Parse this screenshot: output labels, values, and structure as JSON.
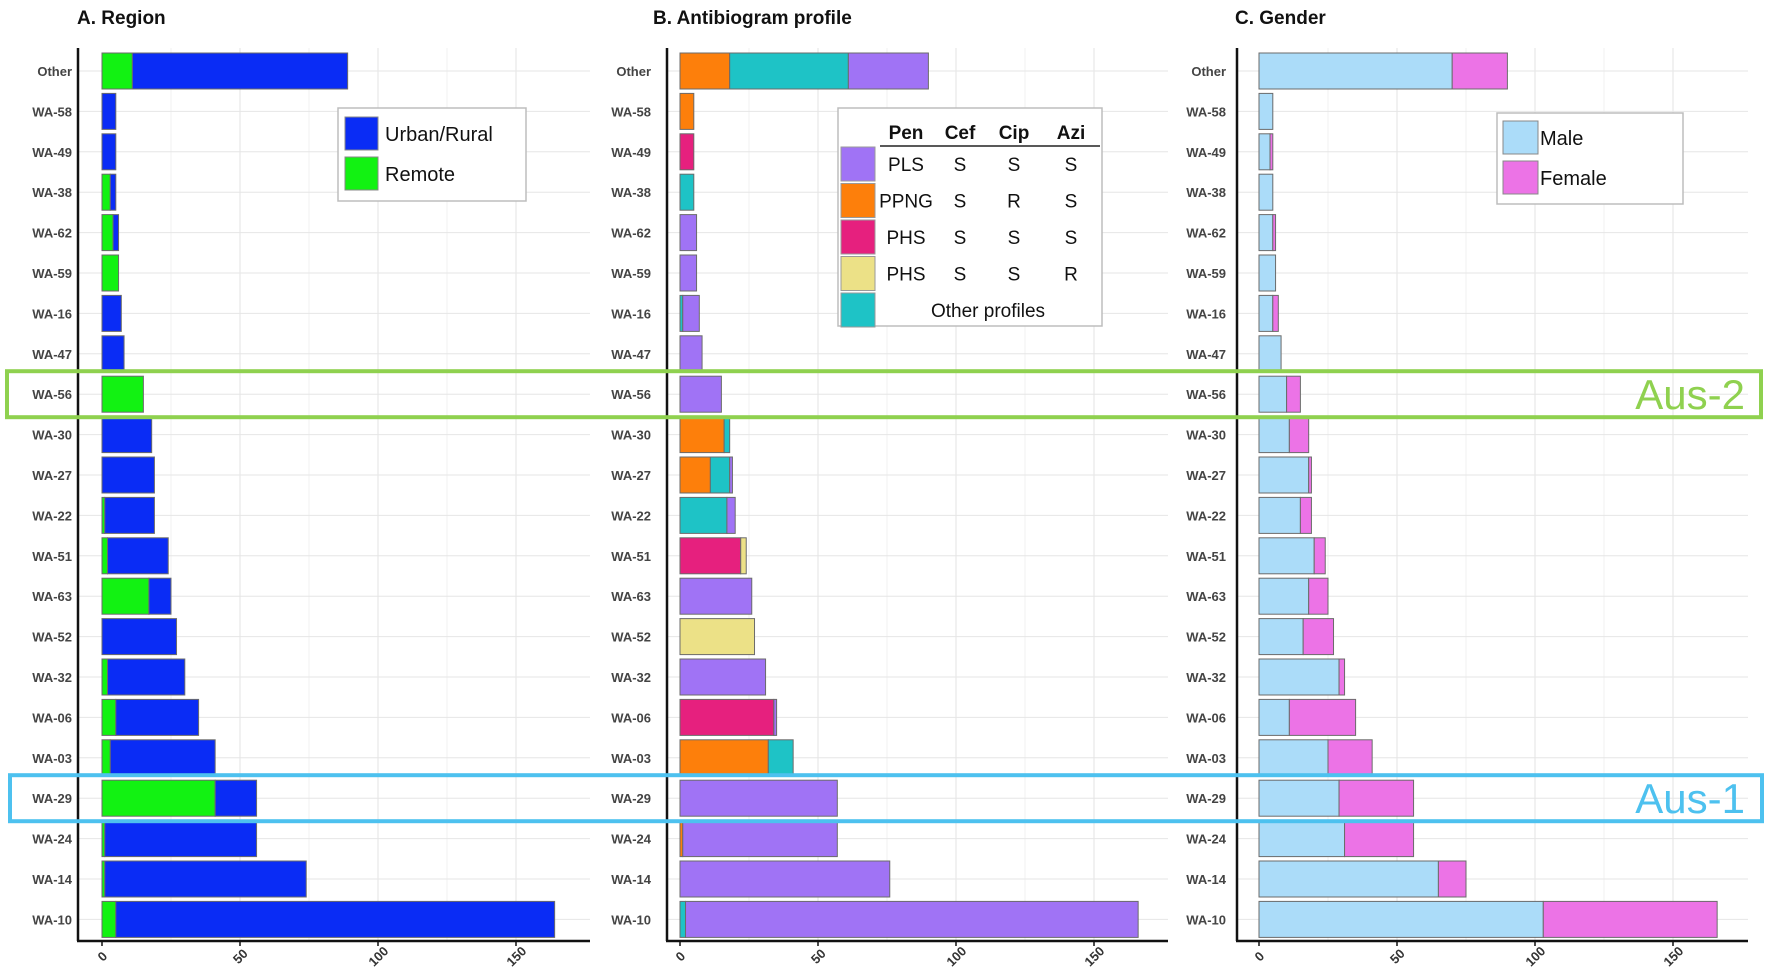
{
  "chart_data": [
    {
      "type": "bar",
      "orientation": "horizontal",
      "stacked": true,
      "title": "A. Region",
      "categories": [
        "Other",
        "WA-58",
        "WA-49",
        "WA-38",
        "WA-62",
        "WA-59",
        "WA-16",
        "WA-47",
        "WA-56",
        "WA-30",
        "WA-27",
        "WA-22",
        "WA-51",
        "WA-63",
        "WA-52",
        "WA-32",
        "WA-06",
        "WA-03",
        "WA-29",
        "WA-24",
        "WA-14",
        "WA-10"
      ],
      "series": [
        {
          "name": "Remote",
          "color": "#12f212",
          "values": [
            11,
            0,
            0,
            3,
            4,
            6,
            0,
            0,
            15,
            0,
            0,
            1,
            2,
            17,
            0,
            2,
            5,
            3,
            41,
            1,
            1,
            5
          ]
        },
        {
          "name": "Urban/Rural",
          "color": "#0a2cf5",
          "values": [
            78,
            5,
            5,
            2,
            2,
            0,
            7,
            8,
            0,
            18,
            19,
            18,
            22,
            8,
            27,
            28,
            30,
            38,
            15,
            55,
            73,
            159
          ]
        }
      ],
      "xlim": [
        0,
        170
      ],
      "xticks": [
        0,
        50,
        100,
        150
      ],
      "legend_position": "top-right",
      "grid": true
    },
    {
      "type": "bar",
      "orientation": "horizontal",
      "stacked": true,
      "title": "B. Antibiogram profile",
      "categories": [
        "Other",
        "WA-58",
        "WA-49",
        "WA-38",
        "WA-62",
        "WA-59",
        "WA-16",
        "WA-47",
        "WA-56",
        "WA-30",
        "WA-27",
        "WA-22",
        "WA-51",
        "WA-63",
        "WA-52",
        "WA-32",
        "WA-06",
        "WA-03",
        "WA-29",
        "WA-24",
        "WA-14",
        "WA-10"
      ],
      "series": [
        {
          "key": "ppng",
          "color": "#fd7f0b",
          "values": [
            18,
            5,
            0,
            0,
            0,
            0,
            0,
            0,
            0,
            16,
            11,
            0,
            0,
            0,
            0,
            0,
            0,
            32,
            0,
            1,
            0,
            0
          ]
        },
        {
          "key": "other",
          "color": "#1ec3c6",
          "values": [
            43,
            0,
            0,
            5,
            0,
            0,
            1,
            0,
            0,
            2,
            7,
            17,
            0,
            0,
            0,
            0,
            0,
            9,
            0,
            0,
            0,
            2
          ]
        },
        {
          "key": "phs_sss",
          "color": "#e6207e",
          "values": [
            0,
            0,
            5,
            0,
            0,
            0,
            0,
            0,
            0,
            0,
            0,
            0,
            22,
            0,
            0,
            0,
            34,
            0,
            0,
            0,
            0,
            0
          ]
        },
        {
          "key": "phs_ssr",
          "color": "#ece187",
          "values": [
            0,
            0,
            0,
            0,
            0,
            0,
            0,
            0,
            0,
            0,
            0,
            0,
            2,
            0,
            27,
            0,
            0,
            0,
            0,
            0,
            0,
            0
          ]
        },
        {
          "key": "pls",
          "color": "#a073f5",
          "values": [
            29,
            0,
            0,
            0,
            6,
            6,
            6,
            8,
            15,
            0,
            1,
            3,
            0,
            26,
            0,
            31,
            1,
            0,
            57,
            56,
            76,
            164
          ]
        }
      ],
      "xlim": [
        0,
        170
      ],
      "xticks": [
        0,
        50,
        100,
        150
      ],
      "legend_position": "top-right",
      "legend_table": {
        "headers": [
          "Pen",
          "Cef",
          "Cip",
          "Azi"
        ],
        "rows": [
          {
            "key": "pls",
            "color": "#a073f5",
            "cells": [
              "PLS",
              "S",
              "S",
              "S"
            ]
          },
          {
            "key": "ppng",
            "color": "#fd7f0b",
            "cells": [
              "PPNG",
              "S",
              "R",
              "S"
            ]
          },
          {
            "key": "phs_sss",
            "color": "#e6207e",
            "cells": [
              "PHS",
              "S",
              "S",
              "S"
            ]
          },
          {
            "key": "phs_ssr",
            "color": "#ece187",
            "cells": [
              "PHS",
              "S",
              "S",
              "R"
            ]
          },
          {
            "key": "other",
            "color": "#1ec3c6",
            "label": "Other profiles"
          }
        ]
      },
      "grid": true
    },
    {
      "type": "bar",
      "orientation": "horizontal",
      "stacked": true,
      "title": "C. Gender",
      "categories": [
        "Other",
        "WA-58",
        "WA-49",
        "WA-38",
        "WA-62",
        "WA-59",
        "WA-16",
        "WA-47",
        "WA-56",
        "WA-30",
        "WA-27",
        "WA-22",
        "WA-51",
        "WA-63",
        "WA-52",
        "WA-32",
        "WA-06",
        "WA-03",
        "WA-29",
        "WA-24",
        "WA-14",
        "WA-10"
      ],
      "series": [
        {
          "name": "Male",
          "color": "#abdcf9",
          "values": [
            70,
            5,
            4,
            5,
            5,
            6,
            5,
            8,
            10,
            11,
            18,
            15,
            20,
            18,
            16,
            29,
            11,
            25,
            29,
            31,
            65,
            103
          ]
        },
        {
          "name": "Female",
          "color": "#ec73e6",
          "values": [
            20,
            0,
            1,
            0,
            1,
            0,
            2,
            0,
            5,
            7,
            1,
            4,
            4,
            7,
            11,
            2,
            24,
            16,
            27,
            25,
            10,
            63
          ]
        }
      ],
      "xlim": [
        0,
        170
      ],
      "xticks": [
        0,
        50,
        100,
        150
      ],
      "legend_position": "top-right",
      "grid": true
    }
  ],
  "highlights": [
    {
      "label": "Aus-2",
      "category": "WA-56",
      "color": "#8fd14f"
    },
    {
      "label": "Aus-1",
      "category": "WA-29",
      "color": "#4dc1ef"
    }
  ]
}
